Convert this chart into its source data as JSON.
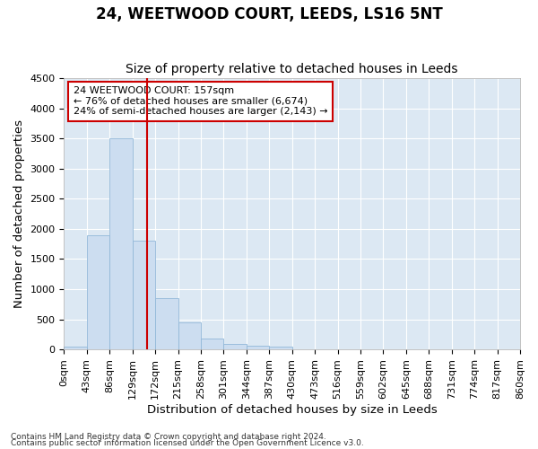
{
  "title": "24, WEETWOOD COURT, LEEDS, LS16 5NT",
  "subtitle": "Size of property relative to detached houses in Leeds",
  "xlabel": "Distribution of detached houses by size in Leeds",
  "ylabel": "Number of detached properties",
  "bar_color": "#ccddf0",
  "bar_edge_color": "#92b8d8",
  "background_color": "#dce8f3",
  "property_label": "24 WEETWOOD COURT: 157sqm",
  "annotation_line1": "← 76% of detached houses are smaller (6,674)",
  "annotation_line2": "24% of semi-detached houses are larger (2,143) →",
  "bin_edges": [
    0,
    43,
    86,
    129,
    172,
    215,
    258,
    301,
    344,
    387,
    430,
    473,
    516,
    559,
    602,
    645,
    688,
    731,
    774,
    817,
    860
  ],
  "bar_heights": [
    50,
    1900,
    3500,
    1800,
    850,
    450,
    175,
    90,
    65,
    50,
    0,
    0,
    0,
    0,
    0,
    0,
    0,
    0,
    0,
    0
  ],
  "ylim": [
    0,
    4500
  ],
  "yticks": [
    0,
    500,
    1000,
    1500,
    2000,
    2500,
    3000,
    3500,
    4000,
    4500
  ],
  "vline_x": 157,
  "vline_color": "#cc0000",
  "footer_line1": "Contains HM Land Registry data © Crown copyright and database right 2024.",
  "footer_line2": "Contains public sector information licensed under the Open Government Licence v3.0.",
  "title_fontsize": 12,
  "subtitle_fontsize": 10,
  "axis_label_fontsize": 9.5,
  "tick_fontsize": 8,
  "annotation_fontsize": 8,
  "annotation_box_color": "white",
  "annotation_box_edge_color": "#cc0000",
  "footer_fontsize": 6.5
}
